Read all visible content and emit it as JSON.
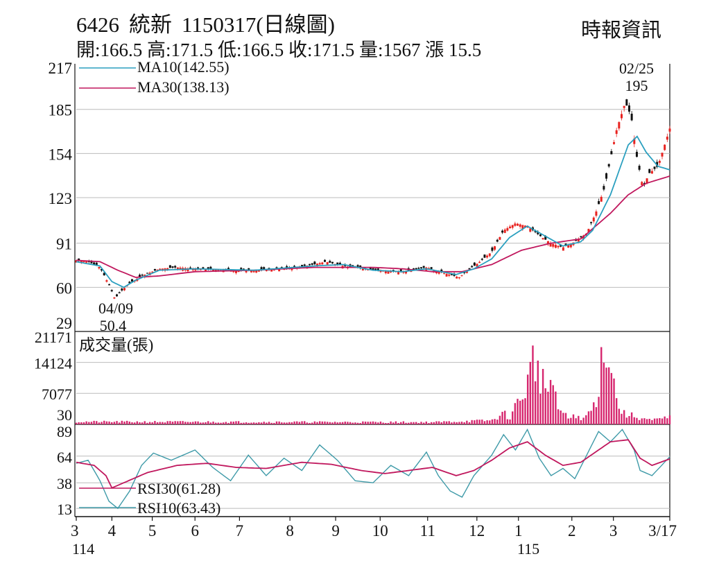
{
  "header": {
    "code": "6426",
    "name": "統新",
    "date_label": "1150317(日線圖)",
    "summary": "開:166.5 高:171.5 低:166.5 收:171.5 量:1567 漲 15.5",
    "source": "時報資訊"
  },
  "colors": {
    "up": "#e8221f",
    "down": "#111111",
    "ma10": "#2a9fbf",
    "ma30": "#c0175d",
    "volume": "#d6266e",
    "rsi30": "#c0175d",
    "rsi10": "#3e9aa8",
    "grid": "#bbbbbb"
  },
  "chart_data": [
    {
      "type": "candlestick",
      "title": "6426 統新 1150317(日線圖)",
      "x_labels": [
        {
          "label": "3",
          "at": 0
        },
        {
          "label": "4",
          "at": 0.06
        },
        {
          "label": "5",
          "at": 0.128
        },
        {
          "label": "6",
          "at": 0.2
        },
        {
          "label": "7",
          "at": 0.275
        },
        {
          "label": "8",
          "at": 0.36
        },
        {
          "label": "9",
          "at": 0.437
        },
        {
          "label": "10",
          "at": 0.512
        },
        {
          "label": "11",
          "at": 0.592
        },
        {
          "label": "12",
          "at": 0.675
        },
        {
          "label": "1",
          "at": 0.745
        },
        {
          "label": "2",
          "at": 0.835
        },
        {
          "label": "3",
          "at": 0.905
        },
        {
          "label": "3/17",
          "at": 1
        }
      ],
      "year_labels": [
        {
          "label": "114",
          "at": 0
        },
        {
          "label": "115",
          "at": 0.75
        }
      ],
      "y_ticks": [
        217,
        185,
        154,
        123,
        91,
        60,
        29
      ],
      "ylim": [
        29,
        217
      ],
      "legend": [
        {
          "name": "MA10",
          "label": "MA10(142.55)"
        },
        {
          "name": "MA30",
          "label": "MA30(138.13)"
        }
      ],
      "annotations": [
        {
          "date": "04/09",
          "value": "50.4"
        },
        {
          "date": "02/25",
          "value": "195"
        }
      ],
      "price_path": [
        [
          0,
          79
        ],
        [
          0.02,
          78
        ],
        [
          0.04,
          74
        ],
        [
          0.055,
          62
        ],
        [
          0.065,
          52
        ],
        [
          0.075,
          57
        ],
        [
          0.09,
          63
        ],
        [
          0.11,
          68
        ],
        [
          0.14,
          73
        ],
        [
          0.17,
          74
        ],
        [
          0.2,
          73
        ],
        [
          0.25,
          72
        ],
        [
          0.3,
          72
        ],
        [
          0.35,
          73
        ],
        [
          0.4,
          76
        ],
        [
          0.42,
          78
        ],
        [
          0.45,
          75
        ],
        [
          0.5,
          72
        ],
        [
          0.55,
          71
        ],
        [
          0.59,
          74
        ],
        [
          0.62,
          70
        ],
        [
          0.645,
          67
        ],
        [
          0.66,
          72
        ],
        [
          0.68,
          78
        ],
        [
          0.7,
          85
        ],
        [
          0.72,
          100
        ],
        [
          0.74,
          105
        ],
        [
          0.76,
          103
        ],
        [
          0.785,
          95
        ],
        [
          0.8,
          91
        ],
        [
          0.82,
          88
        ],
        [
          0.84,
          92
        ],
        [
          0.86,
          98
        ],
        [
          0.875,
          112
        ],
        [
          0.89,
          130
        ],
        [
          0.9,
          150
        ],
        [
          0.91,
          170
        ],
        [
          0.925,
          190
        ],
        [
          0.935,
          180
        ],
        [
          0.945,
          150
        ],
        [
          0.955,
          130
        ],
        [
          0.965,
          140
        ],
        [
          0.98,
          145
        ],
        [
          1,
          171.5
        ]
      ],
      "ma10_path": [
        [
          0,
          78
        ],
        [
          0.04,
          75
        ],
        [
          0.06,
          64
        ],
        [
          0.08,
          60
        ],
        [
          0.1,
          65
        ],
        [
          0.14,
          72
        ],
        [
          0.2,
          73
        ],
        [
          0.3,
          72
        ],
        [
          0.4,
          75
        ],
        [
          0.45,
          76
        ],
        [
          0.5,
          72
        ],
        [
          0.55,
          71
        ],
        [
          0.59,
          73
        ],
        [
          0.64,
          69
        ],
        [
          0.67,
          73
        ],
        [
          0.7,
          80
        ],
        [
          0.73,
          95
        ],
        [
          0.76,
          103
        ],
        [
          0.79,
          96
        ],
        [
          0.82,
          89
        ],
        [
          0.85,
          92
        ],
        [
          0.87,
          100
        ],
        [
          0.9,
          125
        ],
        [
          0.93,
          160
        ],
        [
          0.945,
          166
        ],
        [
          0.96,
          155
        ],
        [
          0.98,
          145
        ],
        [
          1,
          142.55
        ]
      ],
      "ma30_path": [
        [
          0,
          79
        ],
        [
          0.04,
          78
        ],
        [
          0.07,
          72
        ],
        [
          0.1,
          67
        ],
        [
          0.14,
          68
        ],
        [
          0.2,
          71
        ],
        [
          0.3,
          72
        ],
        [
          0.4,
          74
        ],
        [
          0.5,
          74
        ],
        [
          0.55,
          73
        ],
        [
          0.6,
          71
        ],
        [
          0.65,
          71
        ],
        [
          0.7,
          76
        ],
        [
          0.75,
          86
        ],
        [
          0.8,
          91
        ],
        [
          0.85,
          94
        ],
        [
          0.9,
          112
        ],
        [
          0.93,
          125
        ],
        [
          0.96,
          133
        ],
        [
          1,
          138.13
        ]
      ]
    },
    {
      "type": "bar",
      "title": "成交量(張)",
      "y_ticks": [
        21171,
        14124,
        7077,
        30
      ],
      "ylim": [
        0,
        21171
      ],
      "volume_path": [
        [
          0,
          600
        ],
        [
          0.6,
          500
        ],
        [
          0.7,
          900
        ],
        [
          0.72,
          2500
        ],
        [
          0.73,
          1500
        ],
        [
          0.76,
          9000
        ],
        [
          0.77,
          15000
        ],
        [
          0.78,
          12000
        ],
        [
          0.79,
          8000
        ],
        [
          0.8,
          10000
        ],
        [
          0.81,
          4000
        ],
        [
          0.83,
          1200
        ],
        [
          0.84,
          2500
        ],
        [
          0.85,
          800
        ],
        [
          0.87,
          3500
        ],
        [
          0.88,
          8000
        ],
        [
          0.89,
          21171
        ],
        [
          0.9,
          14000
        ],
        [
          0.91,
          6000
        ],
        [
          0.92,
          2500
        ],
        [
          0.95,
          1500
        ],
        [
          0.97,
          900
        ],
        [
          1,
          1567
        ]
      ]
    },
    {
      "type": "line",
      "y_ticks": [
        89,
        64,
        38,
        13
      ],
      "ylim": [
        5,
        95
      ],
      "legend": [
        {
          "name": "RSI30",
          "label": "RSI30(61.28)"
        },
        {
          "name": "RSI10",
          "label": "RSI10(63.43)"
        }
      ],
      "rsi30_path": [
        [
          0,
          58
        ],
        [
          0.03,
          55
        ],
        [
          0.05,
          45
        ],
        [
          0.06,
          33
        ],
        [
          0.08,
          38
        ],
        [
          0.12,
          48
        ],
        [
          0.17,
          55
        ],
        [
          0.22,
          57
        ],
        [
          0.27,
          53
        ],
        [
          0.32,
          52
        ],
        [
          0.38,
          58
        ],
        [
          0.43,
          56
        ],
        [
          0.48,
          50
        ],
        [
          0.52,
          47
        ],
        [
          0.56,
          50
        ],
        [
          0.6,
          53
        ],
        [
          0.64,
          45
        ],
        [
          0.67,
          50
        ],
        [
          0.7,
          60
        ],
        [
          0.73,
          72
        ],
        [
          0.76,
          78
        ],
        [
          0.79,
          65
        ],
        [
          0.82,
          55
        ],
        [
          0.85,
          58
        ],
        [
          0.88,
          70
        ],
        [
          0.9,
          78
        ],
        [
          0.93,
          80
        ],
        [
          0.95,
          62
        ],
        [
          0.97,
          55
        ],
        [
          1,
          61.28
        ]
      ],
      "rsi10_path": [
        [
          0,
          57
        ],
        [
          0.02,
          60
        ],
        [
          0.04,
          40
        ],
        [
          0.055,
          20
        ],
        [
          0.07,
          13
        ],
        [
          0.09,
          30
        ],
        [
          0.11,
          55
        ],
        [
          0.13,
          67
        ],
        [
          0.16,
          60
        ],
        [
          0.2,
          70
        ],
        [
          0.23,
          53
        ],
        [
          0.26,
          40
        ],
        [
          0.29,
          65
        ],
        [
          0.32,
          45
        ],
        [
          0.35,
          62
        ],
        [
          0.38,
          50
        ],
        [
          0.41,
          75
        ],
        [
          0.44,
          60
        ],
        [
          0.47,
          40
        ],
        [
          0.5,
          38
        ],
        [
          0.53,
          55
        ],
        [
          0.56,
          45
        ],
        [
          0.59,
          68
        ],
        [
          0.61,
          45
        ],
        [
          0.63,
          30
        ],
        [
          0.65,
          24
        ],
        [
          0.67,
          45
        ],
        [
          0.7,
          65
        ],
        [
          0.72,
          85
        ],
        [
          0.74,
          70
        ],
        [
          0.76,
          90
        ],
        [
          0.78,
          62
        ],
        [
          0.8,
          45
        ],
        [
          0.82,
          52
        ],
        [
          0.84,
          42
        ],
        [
          0.86,
          65
        ],
        [
          0.88,
          88
        ],
        [
          0.9,
          78
        ],
        [
          0.92,
          90
        ],
        [
          0.94,
          70
        ],
        [
          0.95,
          50
        ],
        [
          0.97,
          45
        ],
        [
          1,
          63.43
        ]
      ]
    }
  ]
}
